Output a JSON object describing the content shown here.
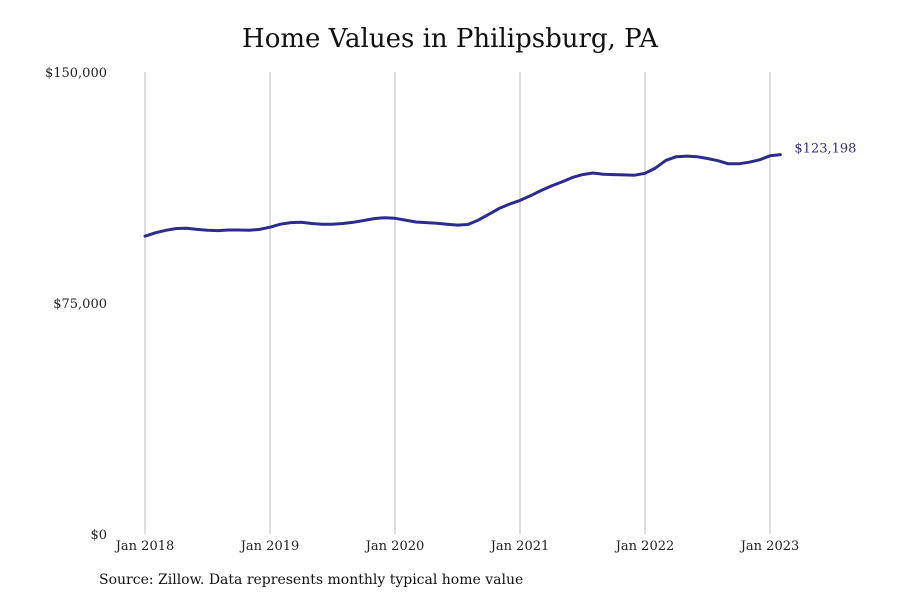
{
  "chart_data": {
    "type": "line",
    "title": "Home Values in Philipsburg, PA",
    "ylim": [
      0,
      150000
    ],
    "y_ticks": [
      {
        "value": 0,
        "label": "$0"
      },
      {
        "value": 75000,
        "label": "$75,000"
      },
      {
        "value": 150000,
        "label": "$150,000"
      }
    ],
    "x_ticks": [
      "Jan 2018",
      "Jan 2019",
      "Jan 2020",
      "Jan 2021",
      "Jan 2022",
      "Jan 2023"
    ],
    "grid": "vertical",
    "colors": {
      "line": "#2e2b8f",
      "grid": "#bbbbbb"
    },
    "series": [
      {
        "x_start": "2018-01",
        "frequency": "monthly",
        "values": [
          96700,
          97800,
          98600,
          99200,
          99300,
          98900,
          98600,
          98500,
          98700,
          98700,
          98600,
          98900,
          99600,
          100600,
          101100,
          101200,
          100800,
          100600,
          100600,
          100800,
          101200,
          101800,
          102400,
          102700,
          102500,
          101900,
          101300,
          101100,
          100900,
          100600,
          100300,
          100500,
          101900,
          103800,
          105700,
          107100,
          108300,
          109800,
          111500,
          113000,
          114300,
          115700,
          116700,
          117200,
          116800,
          116700,
          116600,
          116500,
          117100,
          118800,
          121300,
          122500,
          122700,
          122500,
          121900,
          121200,
          120200,
          120200,
          120700,
          121500,
          122800,
          123198
        ],
        "end_label": "$123,198"
      }
    ]
  },
  "footer": {
    "source": "Source: Zillow. Data represents monthly typical home value"
  }
}
